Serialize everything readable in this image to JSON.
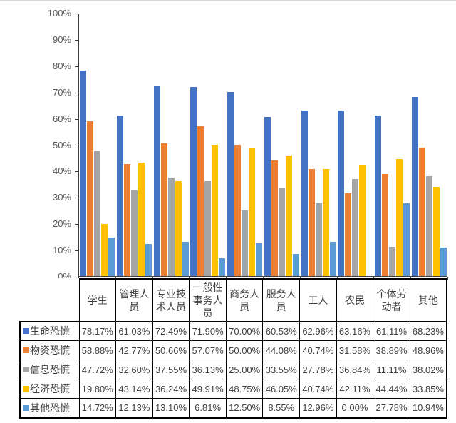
{
  "chart_data": {
    "type": "bar",
    "title": "",
    "xlabel": "",
    "ylabel": "",
    "grid": false,
    "legend_position": "data-table-rows-left",
    "data_table_shown": true,
    "value_format": "0.00%",
    "categories": [
      "学生",
      "管理人员",
      "专业技术人员",
      "一般性事务人员",
      "商务人员",
      "服务人员",
      "工人",
      "农民",
      "个体劳动者",
      "其他"
    ],
    "series": [
      {
        "name": "生命恐慌",
        "color": "#4472C4",
        "values": [
          78.17,
          61.03,
          72.49,
          71.9,
          70.0,
          60.53,
          62.96,
          63.16,
          61.11,
          68.23
        ]
      },
      {
        "name": "物资恐慌",
        "color": "#ED7D31",
        "values": [
          58.88,
          42.77,
          50.66,
          57.07,
          50.0,
          44.08,
          40.74,
          31.58,
          38.89,
          48.96
        ]
      },
      {
        "name": "信息恐慌",
        "color": "#A5A5A5",
        "values": [
          47.72,
          32.6,
          37.55,
          36.13,
          25.0,
          33.55,
          27.78,
          36.84,
          11.11,
          38.02
        ]
      },
      {
        "name": "经济恐慌",
        "color": "#FFC000",
        "values": [
          19.8,
          43.14,
          36.24,
          49.91,
          48.75,
          46.05,
          40.74,
          42.11,
          44.44,
          33.85
        ]
      },
      {
        "name": "其他恐慌",
        "color": "#5B9BD5",
        "values": [
          14.72,
          12.13,
          13.1,
          6.81,
          12.5,
          8.55,
          12.96,
          0.0,
          27.78,
          10.94
        ]
      }
    ],
    "y_axis": {
      "min": 0,
      "max": 100,
      "step": 10,
      "tick_labels": [
        "0%",
        "10%",
        "20%",
        "30%",
        "40%",
        "50%",
        "60%",
        "70%",
        "80%",
        "90%",
        "100%"
      ]
    }
  }
}
